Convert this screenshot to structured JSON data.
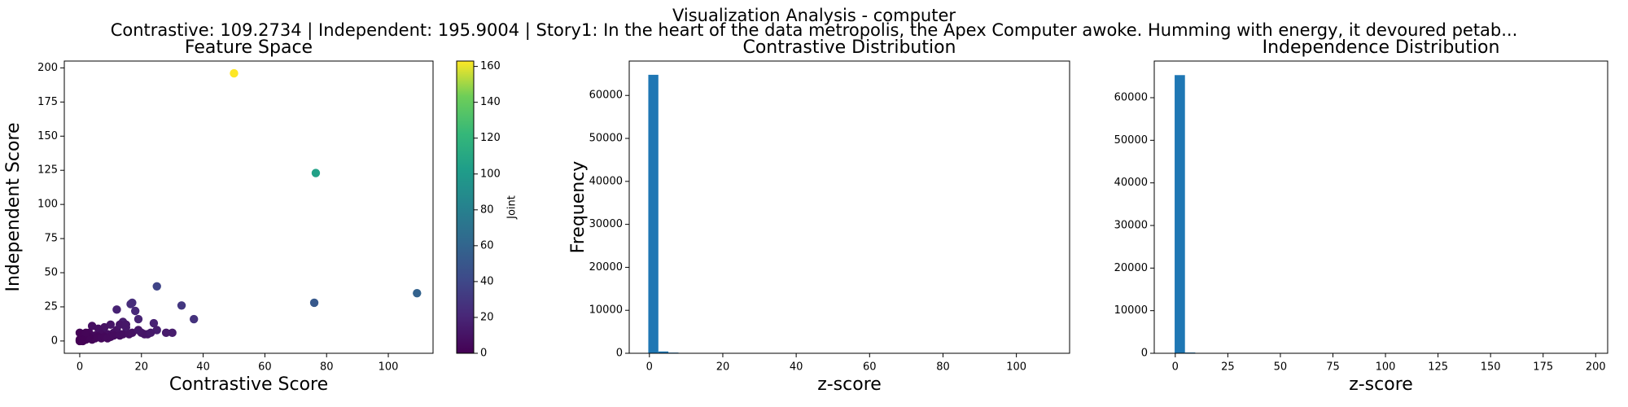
{
  "title": "Visualization Analysis - computer",
  "subtitle": "Contrastive: 109.2734 | Independent: 195.9004 | Story1: In the heart of the data metropolis, the Apex Computer awoke. Humming with energy, it devoured petab...",
  "chart_data": [
    {
      "type": "scatter",
      "title": "Feature Space",
      "x_label": "Contrastive Score",
      "y_label": "Independent Score",
      "xlim": [
        -5,
        114.5
      ],
      "ylim": [
        -9,
        205
      ],
      "xticks": [
        0,
        20,
        40,
        60,
        80,
        100
      ],
      "yticks": [
        0,
        25,
        50,
        75,
        100,
        125,
        150,
        175,
        200
      ],
      "colormap": "viridis",
      "colorbar_label": "Joint",
      "clim": [
        0,
        163
      ],
      "cticks": [
        0,
        20,
        40,
        60,
        80,
        100,
        120,
        140,
        160
      ],
      "x": [
        50,
        76.5,
        109.3,
        76,
        25,
        33,
        37,
        17,
        16.5,
        18,
        19,
        24,
        25,
        30,
        28,
        12,
        14,
        15,
        20,
        21,
        22,
        10,
        8,
        6,
        4,
        12,
        11,
        9,
        7,
        5,
        3,
        2,
        1,
        0,
        0,
        1,
        2,
        3,
        4,
        5,
        6,
        7,
        8,
        9,
        10,
        11,
        13,
        14,
        16,
        17,
        3,
        1,
        0,
        2,
        19,
        13,
        15,
        23
      ],
      "y": [
        196,
        123,
        35,
        28,
        40,
        26,
        16,
        28,
        27,
        22,
        16,
        13,
        8,
        6,
        6,
        23,
        14,
        10,
        6,
        5,
        5,
        12,
        10,
        9,
        11,
        8,
        6,
        5,
        5,
        4,
        6,
        4,
        2,
        0,
        1,
        0,
        1,
        2,
        1,
        2,
        3,
        2,
        3,
        2,
        3,
        4,
        4,
        5,
        5,
        6,
        3,
        3,
        6,
        6,
        8,
        12,
        12,
        6
      ],
      "c": [
        163,
        105,
        58,
        52,
        38,
        30,
        27,
        25,
        24,
        22,
        19,
        18,
        16,
        15,
        14,
        18,
        15,
        13,
        12,
        11,
        11,
        11,
        9,
        8,
        8,
        9,
        8,
        7,
        6,
        5,
        4,
        3,
        1,
        0,
        0,
        1,
        1,
        2,
        2,
        3,
        3,
        4,
        4,
        5,
        5,
        6,
        7,
        7,
        8,
        9,
        2,
        1,
        1,
        2,
        12,
        11,
        12,
        13
      ]
    },
    {
      "type": "histogram",
      "title": "Contrastive Distribution",
      "x_label": "z-score",
      "y_label": "Frequency",
      "color": "#1f77b4",
      "xlim": [
        -5.5,
        114.5
      ],
      "ylim": [
        0,
        68000
      ],
      "xticks": [
        0,
        20,
        40,
        60,
        80,
        100
      ],
      "yticks": [
        0,
        10000,
        20000,
        30000,
        40000,
        50000,
        60000
      ],
      "bins": [
        -0.3,
        2.44,
        5.18,
        7.92,
        10.66,
        13.4,
        16.13,
        18.87,
        21.61,
        24.35,
        27.09,
        29.83,
        32.57,
        35.31,
        38.05,
        40.79,
        43.52,
        46.26,
        49,
        51.74,
        54.48,
        57.22,
        59.96,
        62.7,
        65.44,
        68.18,
        70.91,
        73.65,
        76.39,
        79.13,
        81.87,
        84.61,
        87.35,
        90.09,
        92.83,
        95.57,
        98.3,
        101.04,
        103.78,
        106.52,
        109.27
      ],
      "counts": [
        64800,
        420,
        160,
        60,
        30,
        15,
        8,
        6,
        4,
        3,
        2,
        1,
        1,
        0,
        1,
        0,
        0,
        0,
        1,
        0,
        0,
        0,
        0,
        0,
        0,
        0,
        0,
        1,
        1,
        0,
        0,
        0,
        0,
        0,
        0,
        0,
        0,
        0,
        0,
        1
      ]
    },
    {
      "type": "histogram",
      "title": "Independence Distribution",
      "x_label": "z-score",
      "color": "#1f77b4",
      "xlim": [
        -10,
        205.7
      ],
      "ylim": [
        0,
        68600
      ],
      "xticks": [
        0,
        25,
        50,
        75,
        100,
        125,
        150,
        175,
        200
      ],
      "yticks": [
        0,
        10000,
        20000,
        30000,
        40000,
        50000,
        60000
      ],
      "bins": [
        -0.3,
        4.61,
        9.51,
        14.42,
        19.32,
        24.23,
        29.13,
        34.04,
        38.94,
        43.85,
        48.75,
        53.66,
        58.56,
        63.47,
        68.37,
        73.28,
        78.18,
        83.09,
        87.99,
        92.9,
        97.8,
        102.71,
        107.61,
        112.52,
        117.42,
        122.33,
        127.23,
        132.14,
        137.04,
        141.95,
        146.85,
        151.76,
        156.66,
        161.57,
        166.47,
        171.38,
        176.28,
        181.19,
        186.09,
        191,
        195.9
      ],
      "counts": [
        65300,
        180,
        40,
        15,
        8,
        5,
        4,
        2,
        2,
        1,
        0,
        0,
        0,
        0,
        0,
        0,
        0,
        0,
        0,
        0,
        0,
        0,
        0,
        0,
        1,
        0,
        0,
        0,
        0,
        0,
        0,
        0,
        0,
        0,
        0,
        0,
        0,
        0,
        0,
        1
      ]
    }
  ]
}
